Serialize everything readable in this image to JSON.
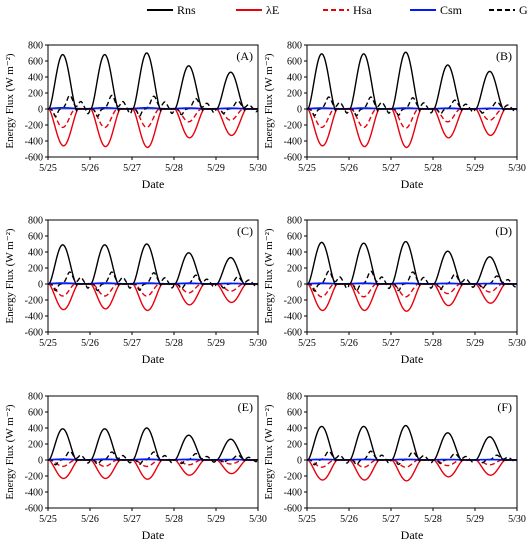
{
  "legend": {
    "placement": "top",
    "items": [
      {
        "key": "Rns",
        "label": "Rns",
        "color": "#000000",
        "dash": "solid"
      },
      {
        "key": "LE",
        "label": "λE",
        "color": "#e8000b",
        "dash": "solid"
      },
      {
        "key": "Hsa",
        "label": "Hsa",
        "color": "#e8000b",
        "dash": "dashed"
      },
      {
        "key": "Csm",
        "label": "Csm",
        "color": "#0019ff",
        "dash": "solid"
      },
      {
        "key": "G",
        "label": "G",
        "color": "#000000",
        "dash": "dashed"
      }
    ]
  },
  "chart_data": [
    {
      "type": "line",
      "panel": "(A)",
      "xlabel": "Date",
      "ylabel": "Energy Flux (W m⁻²)",
      "xlim": [
        25,
        30
      ],
      "ylim": [
        -600,
        800
      ],
      "x_ticks": [
        "5/25",
        "5/26",
        "5/27",
        "5/28",
        "5/29",
        "5/30"
      ],
      "y_ticks": [
        -600,
        -400,
        -200,
        0,
        200,
        400,
        600,
        800
      ],
      "grid": false,
      "series": [
        {
          "name": "Rns",
          "daily_peak": [
            680,
            680,
            700,
            540,
            460
          ]
        },
        {
          "name": "λE",
          "daily_peak": [
            -460,
            -470,
            -480,
            -360,
            -330
          ]
        },
        {
          "name": "Hsa",
          "daily_peak": [
            -230,
            -230,
            -230,
            -160,
            -140
          ]
        },
        {
          "name": "Csm",
          "daily_peak": [
            15,
            15,
            15,
            12,
            10
          ]
        },
        {
          "name": "G",
          "daily_peak": [
            170,
            170,
            160,
            130,
            100
          ]
        }
      ]
    },
    {
      "type": "line",
      "panel": "(B)",
      "xlabel": "Date",
      "ylabel": "Energy Flux (W m⁻²)",
      "xlim": [
        25,
        30
      ],
      "ylim": [
        -600,
        800
      ],
      "x_ticks": [
        "5/25",
        "5/26",
        "5/27",
        "5/28",
        "5/29",
        "5/30"
      ],
      "y_ticks": [
        -600,
        -400,
        -200,
        0,
        200,
        400,
        600,
        800
      ],
      "grid": false,
      "series": [
        {
          "name": "Rns",
          "daily_peak": [
            690,
            690,
            710,
            550,
            470
          ]
        },
        {
          "name": "λE",
          "daily_peak": [
            -460,
            -470,
            -480,
            -360,
            -330
          ]
        },
        {
          "name": "Hsa",
          "daily_peak": [
            -230,
            -230,
            -240,
            -160,
            -140
          ]
        },
        {
          "name": "Csm",
          "daily_peak": [
            12,
            12,
            12,
            10,
            8
          ]
        },
        {
          "name": "G",
          "daily_peak": [
            150,
            150,
            140,
            110,
            90
          ]
        }
      ]
    },
    {
      "type": "line",
      "panel": "(C)",
      "xlabel": "Date",
      "ylabel": "Energy Flux (W m⁻²)",
      "xlim": [
        25,
        30
      ],
      "ylim": [
        -600,
        800
      ],
      "x_ticks": [
        "5/25",
        "5/26",
        "5/27",
        "5/28",
        "5/29",
        "5/30"
      ],
      "y_ticks": [
        -600,
        -400,
        -200,
        0,
        200,
        400,
        600,
        800
      ],
      "grid": false,
      "series": [
        {
          "name": "Rns",
          "daily_peak": [
            490,
            490,
            500,
            390,
            330
          ]
        },
        {
          "name": "λE",
          "daily_peak": [
            -320,
            -310,
            -330,
            -260,
            -230
          ]
        },
        {
          "name": "Hsa",
          "daily_peak": [
            -150,
            -150,
            -150,
            -110,
            -90
          ]
        },
        {
          "name": "Csm",
          "daily_peak": [
            12,
            12,
            12,
            10,
            8
          ]
        },
        {
          "name": "G",
          "daily_peak": [
            150,
            150,
            140,
            110,
            90
          ]
        }
      ]
    },
    {
      "type": "line",
      "panel": "(D)",
      "xlabel": "Date",
      "ylabel": "Energy Flux (W m⁻²)",
      "xlim": [
        25,
        30
      ],
      "ylim": [
        -600,
        800
      ],
      "x_ticks": [
        "5/25",
        "5/26",
        "5/27",
        "5/28",
        "5/29",
        "5/30"
      ],
      "y_ticks": [
        -600,
        -400,
        -200,
        0,
        200,
        400,
        600,
        800
      ],
      "grid": false,
      "series": [
        {
          "name": "Rns",
          "daily_peak": [
            520,
            510,
            530,
            410,
            340
          ]
        },
        {
          "name": "λE",
          "daily_peak": [
            -330,
            -330,
            -340,
            -270,
            -240
          ]
        },
        {
          "name": "Hsa",
          "daily_peak": [
            -160,
            -160,
            -160,
            -120,
            -100
          ]
        },
        {
          "name": "Csm",
          "daily_peak": [
            10,
            10,
            10,
            8,
            6
          ]
        },
        {
          "name": "G",
          "daily_peak": [
            160,
            160,
            150,
            120,
            100
          ]
        }
      ]
    },
    {
      "type": "line",
      "panel": "(E)",
      "xlabel": "Date",
      "ylabel": "Energy Flux (W m⁻²)",
      "xlim": [
        25,
        30
      ],
      "ylim": [
        -600,
        800
      ],
      "x_ticks": [
        "5/25",
        "5/26",
        "5/27",
        "5/28",
        "5/29",
        "5/30"
      ],
      "y_ticks": [
        -600,
        -400,
        -200,
        0,
        200,
        400,
        600,
        800
      ],
      "grid": false,
      "series": [
        {
          "name": "Rns",
          "daily_peak": [
            390,
            390,
            400,
            310,
            260
          ]
        },
        {
          "name": "λE",
          "daily_peak": [
            -230,
            -230,
            -240,
            -190,
            -170
          ]
        },
        {
          "name": "Hsa",
          "daily_peak": [
            -80,
            -80,
            -80,
            -60,
            -50
          ]
        },
        {
          "name": "Csm",
          "daily_peak": [
            10,
            10,
            10,
            8,
            6
          ]
        },
        {
          "name": "G",
          "daily_peak": [
            110,
            100,
            100,
            80,
            60
          ]
        }
      ]
    },
    {
      "type": "line",
      "panel": "(F)",
      "xlabel": "Date",
      "ylabel": "Energy Flux (W m⁻²)",
      "xlim": [
        25,
        30
      ],
      "ylim": [
        -600,
        800
      ],
      "x_ticks": [
        "5/25",
        "5/26",
        "5/27",
        "5/28",
        "5/29",
        "5/30"
      ],
      "y_ticks": [
        -600,
        -400,
        -200,
        0,
        200,
        400,
        600,
        800
      ],
      "grid": false,
      "series": [
        {
          "name": "Rns",
          "daily_peak": [
            420,
            420,
            430,
            340,
            290
          ]
        },
        {
          "name": "λE",
          "daily_peak": [
            -250,
            -250,
            -260,
            -210,
            -190
          ]
        },
        {
          "name": "Hsa",
          "daily_peak": [
            -90,
            -90,
            -90,
            -70,
            -60
          ]
        },
        {
          "name": "Csm",
          "daily_peak": [
            8,
            8,
            8,
            6,
            5
          ]
        },
        {
          "name": "G",
          "daily_peak": [
            110,
            110,
            100,
            80,
            60
          ]
        }
      ]
    }
  ]
}
